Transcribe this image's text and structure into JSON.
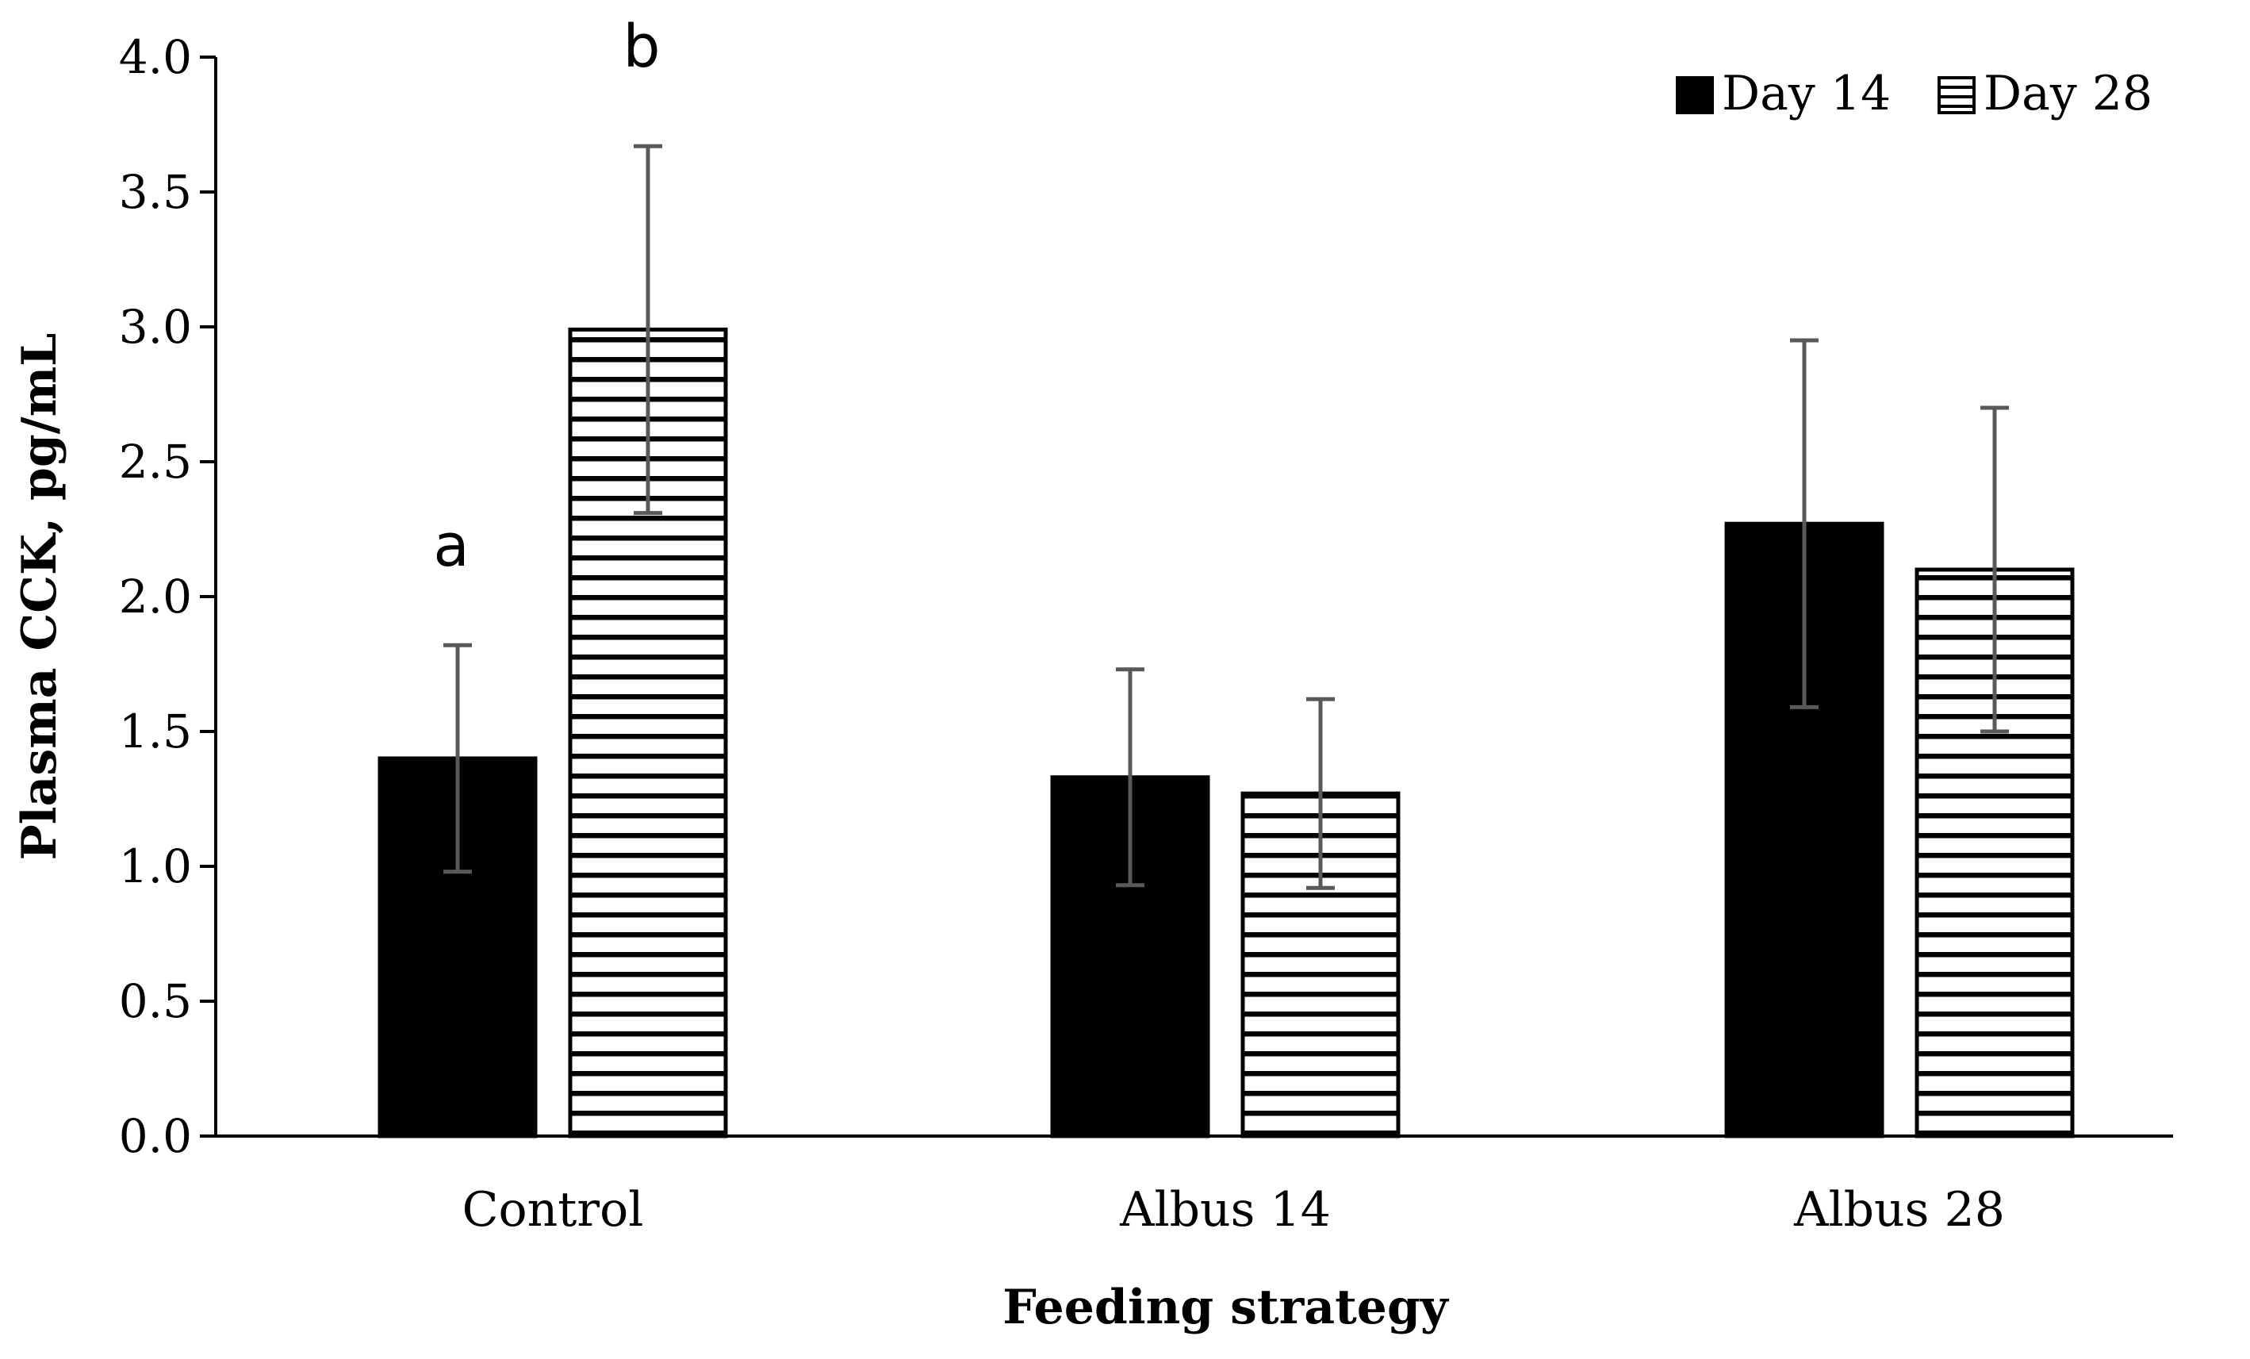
{
  "chart_data": {
    "type": "bar",
    "title": "",
    "xlabel": "Feeding strategy",
    "ylabel": "Plasma CCK, pg/mL",
    "ylim": [
      0,
      4.0
    ],
    "yticks": [
      "0.0",
      "0.5",
      "1.0",
      "1.5",
      "2.0",
      "2.5",
      "3.0",
      "3.5",
      "4.0"
    ],
    "grid": false,
    "legend_position": "top-right",
    "categories": [
      "Control",
      "Albus 14",
      "Albus 28"
    ],
    "series": [
      {
        "name": "Day 14",
        "pattern": "solid",
        "color": "#000000",
        "values": [
          1.4,
          1.33,
          2.27
        ],
        "error_low": [
          0.98,
          0.93,
          1.59
        ],
        "error_high": [
          1.82,
          1.73,
          2.95
        ]
      },
      {
        "name": "Day 28",
        "pattern": "horizontal-stripes",
        "color": "#000000",
        "values": [
          2.99,
          1.27,
          2.1
        ],
        "error_low": [
          2.31,
          0.92,
          1.5
        ],
        "error_high": [
          3.67,
          1.62,
          2.7
        ]
      }
    ],
    "annotations": [
      {
        "text": "a",
        "category": "Control",
        "series": "Day 14"
      },
      {
        "text": "b",
        "category": "Control",
        "series": "Day 28"
      }
    ],
    "error_bar_color": "#595959"
  }
}
